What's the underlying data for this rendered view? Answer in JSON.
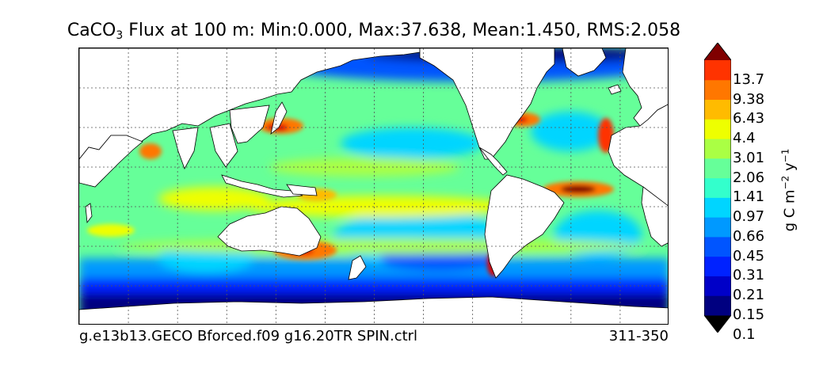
{
  "figure": {
    "title_prefix": "CaCO",
    "title_subscript": "3",
    "title_rest": " Flux at 100 m: Min:0.000, Max:37.638, Mean:1.450, RMS:2.058",
    "caption_left": "g.e13b13.GECO Bforced.f09 g16.20TR SPIN.ctrl",
    "caption_right": "311-350"
  },
  "colorbar": {
    "units_base": "g C m",
    "units_exp1": "−2",
    "units_mid": " y",
    "units_exp2": "−1",
    "extend": "both",
    "tick_labels": [
      "13.7",
      "9.38",
      "6.43",
      "4.4",
      "3.01",
      "2.06",
      "1.41",
      "0.97",
      "0.66",
      "0.45",
      "0.31",
      "0.21",
      "0.15",
      "0.1"
    ],
    "level_colors": [
      "#000080",
      "#0000c8",
      "#0022ff",
      "#0055ff",
      "#0099ff",
      "#00d5ff",
      "#33ffcc",
      "#66ff99",
      "#aaff44",
      "#eeff00",
      "#ffbb00",
      "#ff7700",
      "#ff3300",
      "#dd0000",
      "#800000"
    ],
    "land_color": "#ffffff",
    "grid_color": "#555555"
  }
}
